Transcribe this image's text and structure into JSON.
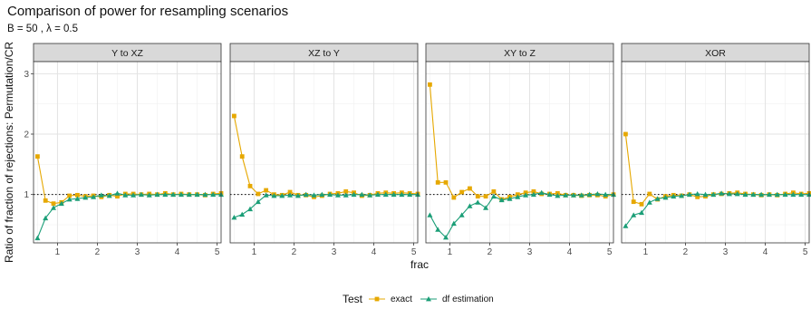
{
  "title": "Comparison of power for resampling scenarios",
  "subtitle": "B = 50 , λ = 0.5",
  "colors": {
    "exact": "#E6A800",
    "df_estimation": "#1B9E77"
  },
  "chart_data": {
    "type": "line",
    "title": "Comparison of power for resampling scenarios",
    "subtitle": "B = 50 , λ = 0.5",
    "xlabel": "frac",
    "ylabel": "Ratio of fraction of rejections: Permutation/CR",
    "xlim": [
      0.4,
      5.1
    ],
    "ylim": [
      0.2,
      3.2
    ],
    "x_ticks": [
      1,
      2,
      3,
      4,
      5
    ],
    "y_ticks": [
      1,
      2,
      3
    ],
    "reference_line": 1,
    "grid": true,
    "legend": {
      "title": "Test",
      "position": "bottom",
      "entries": [
        "exact",
        "df estimation"
      ]
    },
    "x": [
      0.5,
      0.7,
      0.9,
      1.1,
      1.3,
      1.5,
      1.7,
      1.9,
      2.1,
      2.3,
      2.5,
      2.7,
      2.9,
      3.1,
      3.3,
      3.5,
      3.7,
      3.9,
      4.1,
      4.3,
      4.5,
      4.7,
      4.9,
      5.1
    ],
    "panels": [
      {
        "strip": "Y to XZ",
        "series": [
          {
            "name": "exact",
            "values": [
              1.63,
              0.9,
              0.85,
              0.87,
              0.98,
              0.99,
              0.97,
              0.98,
              0.96,
              0.99,
              0.97,
              1.01,
              1.01,
              1.0,
              1.01,
              1.0,
              1.02,
              1.0,
              1.01,
              1.0,
              1.0,
              0.99,
              1.01,
              1.02
            ]
          },
          {
            "name": "df estimation",
            "values": [
              0.28,
              0.61,
              0.78,
              0.85,
              0.92,
              0.93,
              0.95,
              0.96,
              0.99,
              0.98,
              1.02,
              0.99,
              0.99,
              1.0,
              0.99,
              1.0,
              1.0,
              1.0,
              1.0,
              1.0,
              1.0,
              1.0,
              1.0,
              1.0
            ]
          }
        ]
      },
      {
        "strip": "XZ to Y",
        "series": [
          {
            "name": "exact",
            "values": [
              2.3,
              1.63,
              1.14,
              1.01,
              1.07,
              1.0,
              0.99,
              1.04,
              0.99,
              0.99,
              0.96,
              0.98,
              1.01,
              1.02,
              1.05,
              1.03,
              0.98,
              0.99,
              1.02,
              1.03,
              1.02,
              1.03,
              1.02,
              1.01
            ]
          },
          {
            "name": "df estimation",
            "values": [
              0.62,
              0.67,
              0.76,
              0.88,
              0.99,
              0.98,
              0.98,
              0.99,
              0.98,
              1.0,
              0.99,
              1.0,
              1.0,
              0.99,
              0.99,
              1.0,
              1.0,
              0.99,
              1.0,
              1.0,
              1.0,
              1.0,
              1.0,
              1.0
            ]
          }
        ]
      },
      {
        "strip": "XY to Z",
        "series": [
          {
            "name": "exact",
            "values": [
              2.82,
              1.2,
              1.2,
              0.95,
              1.04,
              1.1,
              0.97,
              0.97,
              1.05,
              0.92,
              0.96,
              1.0,
              1.03,
              1.05,
              1.01,
              1.01,
              1.02,
              0.99,
              0.99,
              0.98,
              0.99,
              0.99,
              0.97,
              1.0
            ]
          },
          {
            "name": "df estimation",
            "values": [
              0.66,
              0.42,
              0.29,
              0.52,
              0.66,
              0.81,
              0.87,
              0.78,
              0.97,
              0.91,
              0.93,
              0.96,
              0.99,
              1.0,
              1.03,
              1.0,
              0.98,
              0.99,
              0.99,
              0.99,
              1.0,
              1.01,
              1.0,
              1.0
            ]
          }
        ]
      },
      {
        "strip": "XOR",
        "series": [
          {
            "name": "exact",
            "values": [
              2.0,
              0.88,
              0.84,
              1.01,
              0.92,
              0.97,
              0.99,
              0.98,
              1.0,
              0.96,
              0.97,
              1.0,
              1.01,
              1.02,
              1.03,
              1.01,
              1.0,
              0.99,
              1.0,
              0.99,
              1.01,
              1.03,
              1.01,
              1.02
            ]
          },
          {
            "name": "df estimation",
            "values": [
              0.48,
              0.66,
              0.7,
              0.87,
              0.93,
              0.95,
              0.97,
              0.98,
              1.0,
              1.01,
              1.0,
              1.0,
              1.02,
              1.01,
              1.01,
              1.0,
              1.0,
              1.0,
              1.0,
              1.0,
              1.0,
              1.0,
              1.0,
              1.0
            ]
          }
        ]
      }
    ]
  }
}
